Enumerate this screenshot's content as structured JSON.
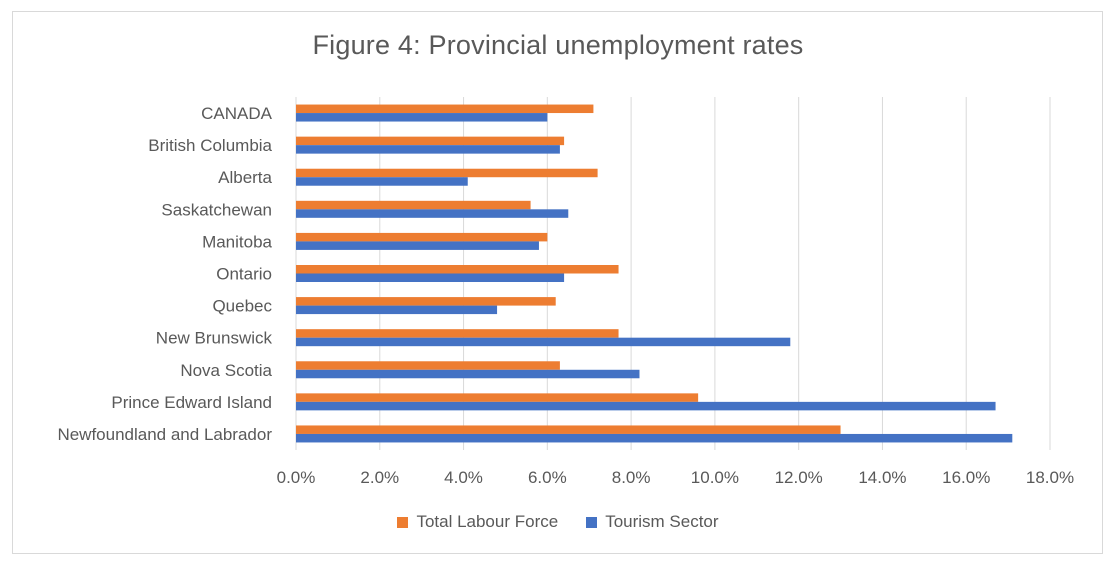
{
  "chart_data": {
    "type": "bar",
    "orientation": "horizontal",
    "title": "Figure 4: Provincial unemployment rates",
    "categories": [
      "CANADA",
      "British Columbia",
      "Alberta",
      "Saskatchewan",
      "Manitoba",
      "Ontario",
      "Quebec",
      "New Brunswick",
      "Nova Scotia",
      "Prince Edward Island",
      "Newfoundland and Labrador"
    ],
    "series": [
      {
        "name": "Total Labour Force",
        "color": "#ED7D31",
        "values": [
          7.1,
          6.4,
          7.2,
          5.6,
          6.0,
          7.7,
          6.2,
          7.7,
          6.3,
          9.6,
          13.0
        ]
      },
      {
        "name": "Tourism Sector",
        "color": "#4472C4",
        "values": [
          6.0,
          6.3,
          4.1,
          6.5,
          5.8,
          6.4,
          4.8,
          11.8,
          8.2,
          16.7,
          17.1
        ]
      }
    ],
    "xlim": [
      0,
      18
    ],
    "xticks": [
      0,
      2,
      4,
      6,
      8,
      10,
      12,
      14,
      16,
      18
    ],
    "xtick_labels": [
      "0.0%",
      "2.0%",
      "4.0%",
      "6.0%",
      "8.0%",
      "10.0%",
      "12.0%",
      "14.0%",
      "16.0%",
      "18.0%"
    ],
    "grid": "vertical",
    "legend": "bottom-center",
    "xlabel": "",
    "ylabel": ""
  }
}
